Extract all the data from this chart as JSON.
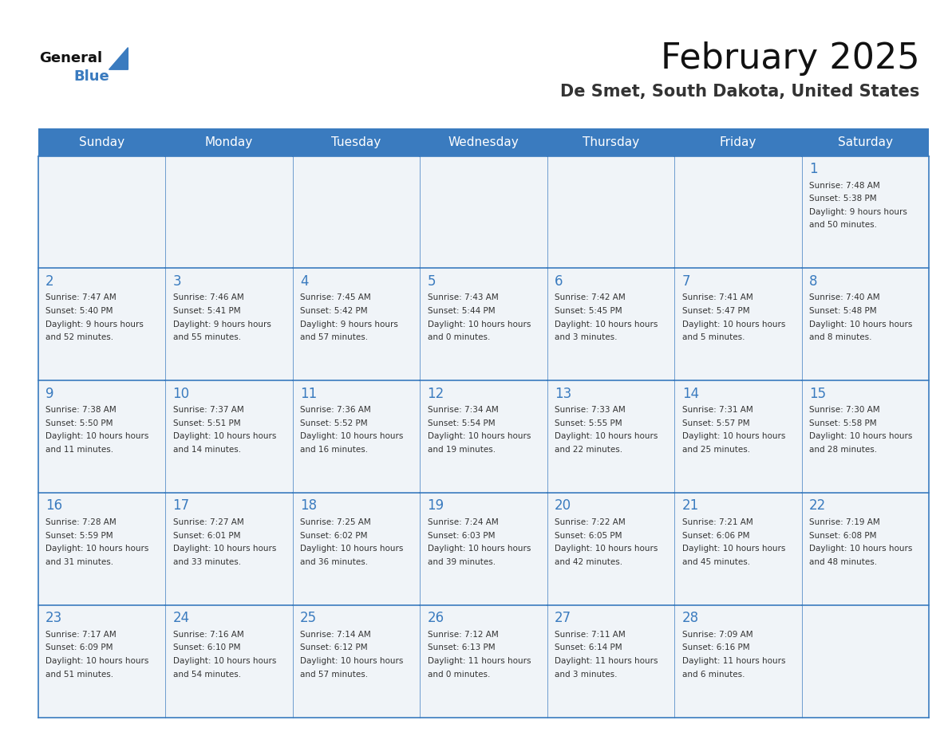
{
  "title": "February 2025",
  "subtitle": "De Smet, South Dakota, United States",
  "days_of_week": [
    "Sunday",
    "Monday",
    "Tuesday",
    "Wednesday",
    "Thursday",
    "Friday",
    "Saturday"
  ],
  "header_bg": "#3a7bbf",
  "header_text": "#ffffff",
  "cell_bg_light": "#f0f4f8",
  "cell_bg_white": "#ffffff",
  "border_color": "#3a7bbf",
  "day_number_color": "#3a7bbf",
  "cell_text_color": "#333333",
  "logo_general_color": "#111111",
  "logo_blue_color": "#3a7bbf",
  "calendar_data": [
    [
      {
        "day": null,
        "sunrise": null,
        "sunset": null,
        "daylight": null
      },
      {
        "day": null,
        "sunrise": null,
        "sunset": null,
        "daylight": null
      },
      {
        "day": null,
        "sunrise": null,
        "sunset": null,
        "daylight": null
      },
      {
        "day": null,
        "sunrise": null,
        "sunset": null,
        "daylight": null
      },
      {
        "day": null,
        "sunrise": null,
        "sunset": null,
        "daylight": null
      },
      {
        "day": null,
        "sunrise": null,
        "sunset": null,
        "daylight": null
      },
      {
        "day": 1,
        "sunrise": "7:48 AM",
        "sunset": "5:38 PM",
        "daylight": "9 hours and 50 minutes."
      }
    ],
    [
      {
        "day": 2,
        "sunrise": "7:47 AM",
        "sunset": "5:40 PM",
        "daylight": "9 hours and 52 minutes."
      },
      {
        "day": 3,
        "sunrise": "7:46 AM",
        "sunset": "5:41 PM",
        "daylight": "9 hours and 55 minutes."
      },
      {
        "day": 4,
        "sunrise": "7:45 AM",
        "sunset": "5:42 PM",
        "daylight": "9 hours and 57 minutes."
      },
      {
        "day": 5,
        "sunrise": "7:43 AM",
        "sunset": "5:44 PM",
        "daylight": "10 hours and 0 minutes."
      },
      {
        "day": 6,
        "sunrise": "7:42 AM",
        "sunset": "5:45 PM",
        "daylight": "10 hours and 3 minutes."
      },
      {
        "day": 7,
        "sunrise": "7:41 AM",
        "sunset": "5:47 PM",
        "daylight": "10 hours and 5 minutes."
      },
      {
        "day": 8,
        "sunrise": "7:40 AM",
        "sunset": "5:48 PM",
        "daylight": "10 hours and 8 minutes."
      }
    ],
    [
      {
        "day": 9,
        "sunrise": "7:38 AM",
        "sunset": "5:50 PM",
        "daylight": "10 hours and 11 minutes."
      },
      {
        "day": 10,
        "sunrise": "7:37 AM",
        "sunset": "5:51 PM",
        "daylight": "10 hours and 14 minutes."
      },
      {
        "day": 11,
        "sunrise": "7:36 AM",
        "sunset": "5:52 PM",
        "daylight": "10 hours and 16 minutes."
      },
      {
        "day": 12,
        "sunrise": "7:34 AM",
        "sunset": "5:54 PM",
        "daylight": "10 hours and 19 minutes."
      },
      {
        "day": 13,
        "sunrise": "7:33 AM",
        "sunset": "5:55 PM",
        "daylight": "10 hours and 22 minutes."
      },
      {
        "day": 14,
        "sunrise": "7:31 AM",
        "sunset": "5:57 PM",
        "daylight": "10 hours and 25 minutes."
      },
      {
        "day": 15,
        "sunrise": "7:30 AM",
        "sunset": "5:58 PM",
        "daylight": "10 hours and 28 minutes."
      }
    ],
    [
      {
        "day": 16,
        "sunrise": "7:28 AM",
        "sunset": "5:59 PM",
        "daylight": "10 hours and 31 minutes."
      },
      {
        "day": 17,
        "sunrise": "7:27 AM",
        "sunset": "6:01 PM",
        "daylight": "10 hours and 33 minutes."
      },
      {
        "day": 18,
        "sunrise": "7:25 AM",
        "sunset": "6:02 PM",
        "daylight": "10 hours and 36 minutes."
      },
      {
        "day": 19,
        "sunrise": "7:24 AM",
        "sunset": "6:03 PM",
        "daylight": "10 hours and 39 minutes."
      },
      {
        "day": 20,
        "sunrise": "7:22 AM",
        "sunset": "6:05 PM",
        "daylight": "10 hours and 42 minutes."
      },
      {
        "day": 21,
        "sunrise": "7:21 AM",
        "sunset": "6:06 PM",
        "daylight": "10 hours and 45 minutes."
      },
      {
        "day": 22,
        "sunrise": "7:19 AM",
        "sunset": "6:08 PM",
        "daylight": "10 hours and 48 minutes."
      }
    ],
    [
      {
        "day": 23,
        "sunrise": "7:17 AM",
        "sunset": "6:09 PM",
        "daylight": "10 hours and 51 minutes."
      },
      {
        "day": 24,
        "sunrise": "7:16 AM",
        "sunset": "6:10 PM",
        "daylight": "10 hours and 54 minutes."
      },
      {
        "day": 25,
        "sunrise": "7:14 AM",
        "sunset": "6:12 PM",
        "daylight": "10 hours and 57 minutes."
      },
      {
        "day": 26,
        "sunrise": "7:12 AM",
        "sunset": "6:13 PM",
        "daylight": "11 hours and 0 minutes."
      },
      {
        "day": 27,
        "sunrise": "7:11 AM",
        "sunset": "6:14 PM",
        "daylight": "11 hours and 3 minutes."
      },
      {
        "day": 28,
        "sunrise": "7:09 AM",
        "sunset": "6:16 PM",
        "daylight": "11 hours and 6 minutes."
      },
      {
        "day": null,
        "sunrise": null,
        "sunset": null,
        "daylight": null
      }
    ]
  ]
}
